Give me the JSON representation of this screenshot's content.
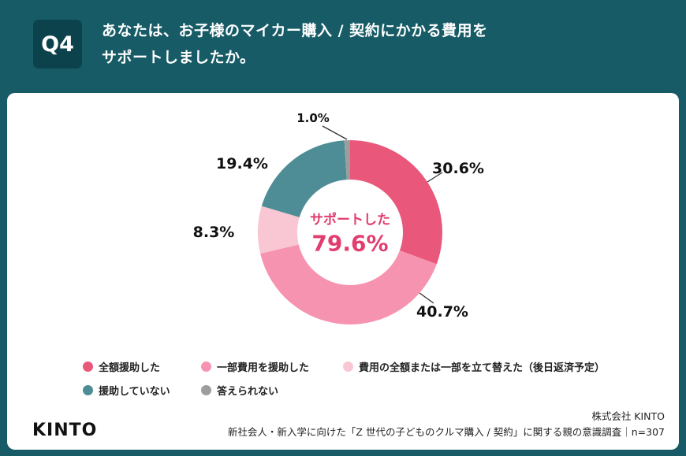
{
  "header": {
    "badge": "Q4",
    "title_line1": "あなたは、お子様のマイカー購入 / 契約にかかる費用を",
    "title_line2": "サポートしましたか。"
  },
  "chart_data": {
    "type": "pie",
    "donut": true,
    "center": {
      "label": "サポートした",
      "value": "79.6%"
    },
    "slices": [
      {
        "label": "全額援助した",
        "value": 30.6,
        "display": "30.6%",
        "color": "#E9587B"
      },
      {
        "label": "一部費用を援助した",
        "value": 40.7,
        "display": "40.7%",
        "color": "#F693B0"
      },
      {
        "label": "費用の全額または一部を立て替えた（後日返済予定）",
        "value": 8.3,
        "display": "8.3%",
        "color": "#F9C6D3"
      },
      {
        "label": "援助していない",
        "value": 19.4,
        "display": "19.4%",
        "color": "#4E8D95"
      },
      {
        "label": "答えられない",
        "value": 1.0,
        "display": "1.0%",
        "color": "#9D9D9D"
      }
    ],
    "supported_total": {
      "label": "サポートした",
      "value": 79.6
    },
    "legend_position": "bottom"
  },
  "footer": {
    "logo": "KINTO",
    "company": "株式会社 KINTO",
    "source": "新社会人・新入学に向けた「Z 世代の子どものクルマ購入 / 契約」に関する親の意識調査｜n=307"
  },
  "colors": {
    "background": "#175B66",
    "badge": "#0C424B",
    "card": "#FFFFFF",
    "center_text": "#E13D6E"
  }
}
